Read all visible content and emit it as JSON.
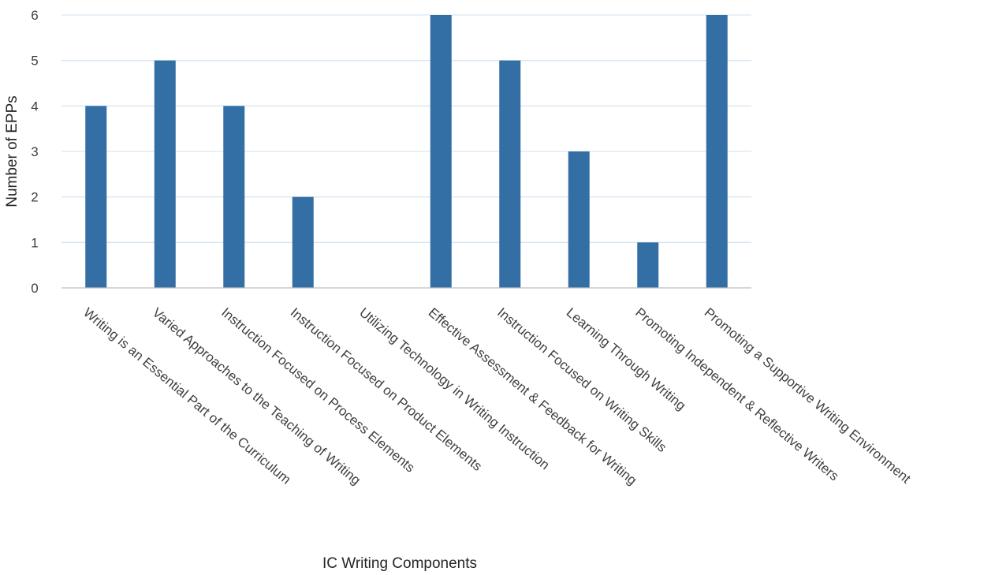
{
  "chart_data": {
    "type": "bar",
    "title": "",
    "xlabel": "IC Writing Components",
    "ylabel": "Number of EPPs",
    "categories": [
      "Writing is an Essential Part of the Curriculum",
      "Varied Approaches to the Teaching of Writing",
      "Instruction Focused on Process Elements",
      "Instruction Focused on Product Elements",
      "Utilizing Technology in Writing Instruction",
      "Effective Assessment & Feedback for Writing",
      "Instruction Focused on Writing Skills",
      "Learning Through Writing",
      "Promoting Independent & Reflective Writers",
      "Promoting a Supportive Writing Environment"
    ],
    "values": [
      4,
      5,
      4,
      2,
      0,
      6,
      5,
      3,
      1,
      6
    ],
    "ylim": [
      0,
      6
    ],
    "yticks": [
      "0",
      "1",
      "2",
      "3",
      "4",
      "5",
      "6"
    ],
    "grid": true,
    "legend": "none",
    "bar_color": "#336ea5"
  }
}
